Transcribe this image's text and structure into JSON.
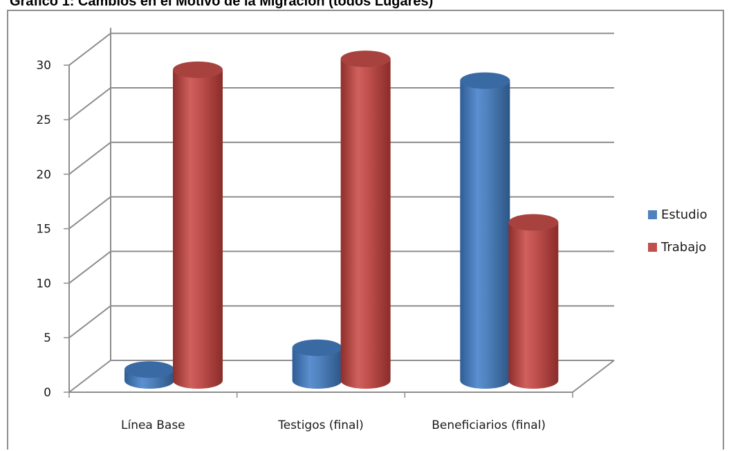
{
  "title": "Gráfico 1: Cambios en el Motivo de la Migración (todos Lugares)",
  "chart_data": {
    "type": "bar",
    "style": "3d-cylinder",
    "categories": [
      "Línea Base",
      "Testigos (final)",
      "Beneficiarios (final)"
    ],
    "series": [
      {
        "name": "Estudio",
        "values": [
          1,
          3,
          27.5
        ],
        "color": "#4f81bd"
      },
      {
        "name": "Trabajo",
        "values": [
          28.5,
          29.5,
          14.5
        ],
        "color": "#c0504d"
      }
    ],
    "ylim": [
      0,
      30
    ],
    "yticks": [
      "0",
      "5",
      "10",
      "15",
      "20",
      "25",
      "30"
    ],
    "grid": true,
    "legend_position": "right"
  }
}
